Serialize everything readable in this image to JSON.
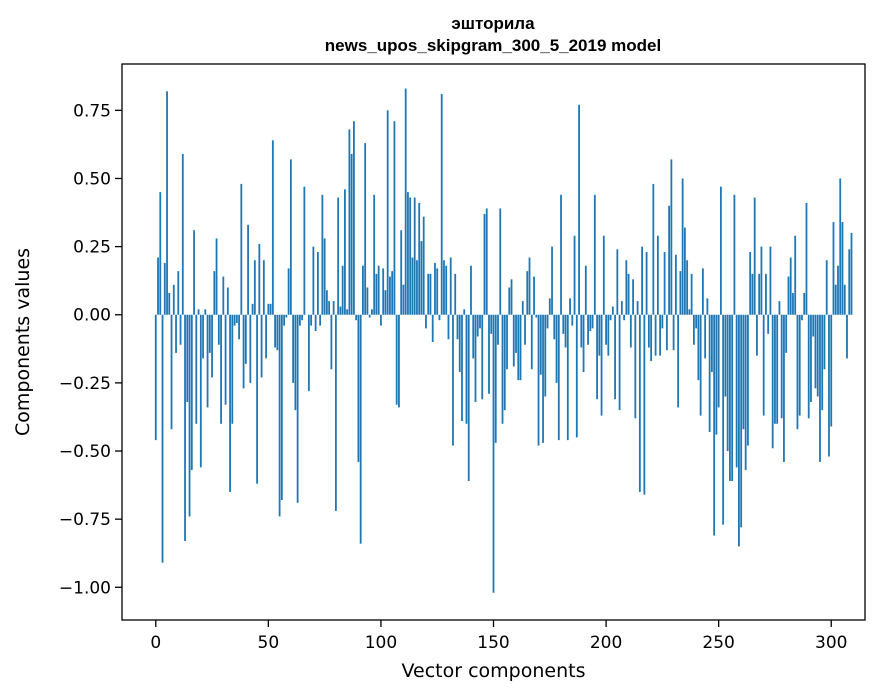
{
  "chart_data": {
    "type": "bar",
    "title_line1": "эшторила",
    "title_line2": "news_upos_skipgram_300_5_2019 model",
    "xlabel": "Vector components",
    "ylabel": "Components values",
    "xlim": [
      -15,
      315
    ],
    "ylim": [
      -1.12,
      0.92
    ],
    "xticks": [
      0,
      50,
      100,
      150,
      200,
      250,
      300
    ],
    "xtick_labels": [
      "0",
      "50",
      "100",
      "150",
      "200",
      "250",
      "300"
    ],
    "yticks": [
      -1.0,
      -0.75,
      -0.5,
      -0.25,
      0.0,
      0.25,
      0.5,
      0.75
    ],
    "ytick_labels": [
      "−1.00",
      "−0.75",
      "−0.50",
      "−0.25",
      "0.00",
      "0.25",
      "0.50",
      "0.75"
    ],
    "bar_color": "#1f77b4",
    "values": [
      -0.46,
      0.21,
      0.45,
      -0.91,
      0.19,
      0.82,
      0.08,
      -0.42,
      0.11,
      -0.14,
      0.16,
      -0.11,
      0.59,
      -0.83,
      -0.32,
      -0.74,
      -0.57,
      0.31,
      -0.4,
      0.02,
      -0.56,
      -0.16,
      0.02,
      -0.34,
      -0.14,
      -0.23,
      0.16,
      0.28,
      -0.11,
      -0.4,
      0.14,
      -0.33,
      0.1,
      -0.65,
      -0.4,
      -0.04,
      -0.03,
      -0.09,
      0.48,
      -0.27,
      -0.18,
      0.33,
      -0.25,
      0.04,
      0.2,
      -0.62,
      0.26,
      -0.23,
      0.2,
      -0.16,
      0.04,
      0.04,
      0.64,
      -0.12,
      -0.13,
      -0.74,
      -0.68,
      -0.04,
      -0.01,
      0.17,
      0.57,
      -0.25,
      -0.35,
      -0.69,
      -0.04,
      -0.02,
      0.47,
      0.0,
      -0.28,
      -0.04,
      0.25,
      -0.06,
      0.23,
      -0.04,
      0.44,
      0.28,
      0.09,
      0.05,
      -0.2,
      0.05,
      -0.72,
      0.43,
      0.03,
      0.18,
      0.46,
      0.02,
      0.68,
      0.59,
      0.71,
      -0.02,
      -0.54,
      -0.84,
      0.18,
      0.63,
      0.1,
      -0.01,
      0.02,
      0.44,
      0.15,
      0.18,
      -0.04,
      0.17,
      0.09,
      0.75,
      0.14,
      0.16,
      0.71,
      -0.33,
      -0.34,
      0.31,
      0.11,
      0.83,
      0.45,
      0.43,
      0.21,
      0.43,
      0.2,
      0.41,
      0.27,
      0.36,
      -0.05,
      0.15,
      0.15,
      -0.1,
      0.19,
      0.17,
      -0.02,
      0.81,
      0.2,
      0.18,
      -0.09,
      0.21,
      -0.48,
      0.15,
      -0.09,
      -0.21,
      -0.39,
      0.02,
      -0.4,
      -0.61,
      0.18,
      -0.16,
      -0.32,
      -0.08,
      -0.05,
      -0.31,
      0.37,
      0.39,
      -0.29,
      -0.07,
      -1.02,
      -0.47,
      -0.11,
      0.39,
      -0.4,
      -0.35,
      -0.2,
      0.1,
      0.13,
      -0.19,
      -0.14,
      -0.24,
      -0.24,
      0.05,
      -0.11,
      0.16,
      0.21,
      -0.2,
      0.14,
      -0.01,
      -0.48,
      -0.22,
      -0.47,
      -0.3,
      -0.05,
      0.06,
      0.25,
      -0.09,
      -0.25,
      -0.46,
      0.44,
      -0.07,
      -0.12,
      -0.46,
      0.06,
      -0.04,
      0.29,
      -0.45,
      0.77,
      -0.12,
      -0.21,
      0.18,
      -0.11,
      -0.06,
      -0.05,
      0.44,
      -0.31,
      -0.15,
      -0.37,
      0.29,
      -0.11,
      -0.15,
      -0.02,
      0.03,
      -0.31,
      0.24,
      -0.35,
      0.05,
      -0.02,
      0.2,
      0.15,
      -0.12,
      0.13,
      -0.38,
      0.05,
      -0.65,
      0.25,
      -0.66,
      0.23,
      -0.12,
      -0.17,
      0.48,
      -0.15,
      0.29,
      -0.15,
      -0.05,
      0.23,
      -0.13,
      0.4,
      0.57,
      -0.13,
      0.22,
      -0.34,
      0.16,
      0.5,
      0.32,
      0.2,
      0.02,
      0.15,
      -0.11,
      -0.05,
      -0.24,
      -0.37,
      0.17,
      -0.16,
      0.06,
      -0.43,
      -0.21,
      -0.81,
      -0.44,
      -0.34,
      0.47,
      -0.77,
      -0.3,
      -0.5,
      -0.61,
      -0.61,
      0.44,
      -0.56,
      -0.85,
      -0.78,
      -0.42,
      -0.57,
      -0.48,
      0.23,
      0.15,
      0.43,
      -0.15,
      0.15,
      0.25,
      -0.37,
      0.15,
      -0.07,
      0.25,
      -0.49,
      -0.4,
      -0.4,
      0.05,
      -0.38,
      -0.54,
      -0.14,
      0.14,
      0.21,
      0.08,
      0.29,
      -0.42,
      -0.37,
      -0.02,
      0.08,
      0.41,
      -0.38,
      -0.32,
      -0.08,
      -0.27,
      -0.3,
      -0.54,
      -0.35,
      -0.2,
      0.2,
      -0.52,
      -0.41,
      0.34,
      0.11,
      0.18,
      0.5,
      0.34,
      0.11,
      -0.16,
      0.24,
      0.3
    ]
  }
}
